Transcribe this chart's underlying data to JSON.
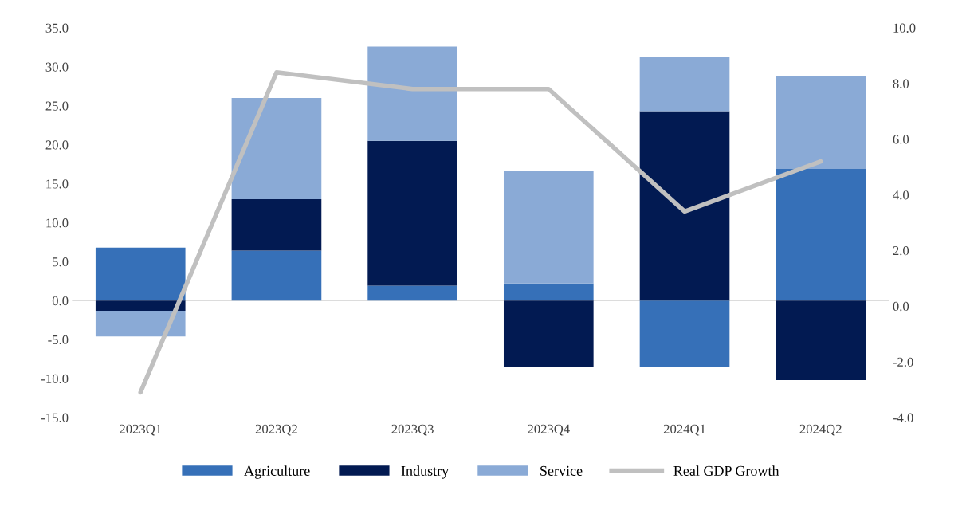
{
  "chart_data": {
    "type": "bar",
    "stacked": true,
    "categories": [
      "2023Q1",
      "2023Q2",
      "2023Q3",
      "2023Q4",
      "2024Q1",
      "2024Q2"
    ],
    "series": [
      {
        "name": "Agriculture",
        "color": "#3670b8",
        "values": [
          6.8,
          6.4,
          1.9,
          2.2,
          -8.5,
          16.9
        ]
      },
      {
        "name": "Industry",
        "color": "#021a52",
        "values": [
          -1.3,
          6.6,
          18.6,
          -8.5,
          24.3,
          -10.2
        ]
      },
      {
        "name": "Service",
        "color": "#8aaad6",
        "values": [
          -3.3,
          13.0,
          12.1,
          14.4,
          7.0,
          11.9
        ]
      },
      {
        "name": "Real GDP Growth",
        "type": "line",
        "axis": "y2",
        "color": "#c0c0c0",
        "values": [
          -3.1,
          8.4,
          7.8,
          7.8,
          3.4,
          5.2
        ]
      }
    ],
    "ylim": [
      -15,
      35
    ],
    "yticks": [
      {
        "value": -15,
        "label": "-15.0"
      },
      {
        "value": -10,
        "label": "-10.0"
      },
      {
        "value": -5,
        "label": "-5.0"
      },
      {
        "value": 0,
        "label": "0.0"
      },
      {
        "value": 5,
        "label": "5.0"
      },
      {
        "value": 10,
        "label": "10.0"
      },
      {
        "value": 15,
        "label": "15.0"
      },
      {
        "value": 20,
        "label": "20.0"
      },
      {
        "value": 25,
        "label": "25.0"
      },
      {
        "value": 30,
        "label": "30.0"
      },
      {
        "value": 35,
        "label": "35.0"
      }
    ],
    "y2lim": [
      -4,
      10
    ],
    "y2ticks": [
      {
        "value": -4,
        "label": "-4.0"
      },
      {
        "value": -2,
        "label": "-2.0"
      },
      {
        "value": 0,
        "label": "0.0"
      },
      {
        "value": 2,
        "label": "2.0"
      },
      {
        "value": 4,
        "label": "4.0"
      },
      {
        "value": 6,
        "label": "6.0"
      },
      {
        "value": 8,
        "label": "8.0"
      },
      {
        "value": 10,
        "label": "10.0"
      }
    ],
    "legend": "bottom"
  }
}
